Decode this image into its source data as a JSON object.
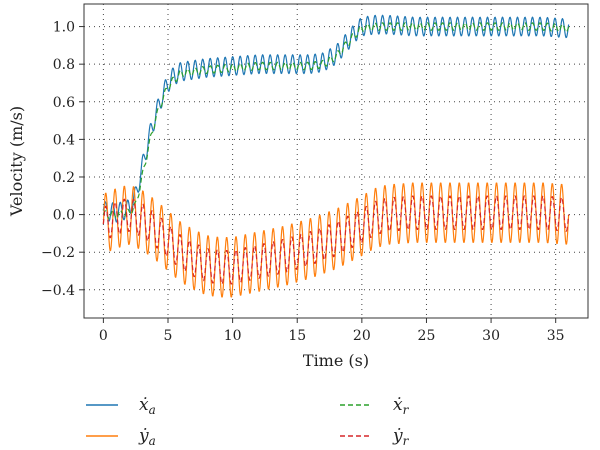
{
  "chart_data": {
    "type": "line",
    "title": "",
    "xlabel": "Time (s)",
    "ylabel": "Velocity (m/s)",
    "xlim": [
      -1.5,
      37.5
    ],
    "ylim": [
      -0.55,
      1.12
    ],
    "xticks": [
      0,
      5,
      10,
      15,
      20,
      25,
      30,
      35
    ],
    "yticks": [
      -0.4,
      -0.2,
      0.0,
      0.2,
      0.4,
      0.6,
      0.8,
      1.0
    ],
    "xtick_labels": [
      "0",
      "5",
      "10",
      "15",
      "20",
      "25",
      "30",
      "35"
    ],
    "ytick_labels": [
      "−0.4",
      "−0.2",
      "0.0",
      "0.2",
      "0.4",
      "0.6",
      "0.8",
      "1.0"
    ],
    "grid": "dotted",
    "legend_placement": "bottom",
    "series": [
      {
        "name": "ẋ_a",
        "symbol": "ẋ",
        "sub": "a",
        "color": "#1f77b4",
        "style": "solid",
        "x": [
          0,
          1,
          2,
          2.5,
          3,
          3.5,
          4,
          4.5,
          5,
          5.5,
          6,
          7,
          8,
          10,
          12,
          14,
          16,
          17,
          18,
          19,
          19.5,
          20,
          21,
          22,
          24,
          26,
          28,
          30,
          32,
          34,
          36
        ],
        "y": [
          0.02,
          0.01,
          0.03,
          0.1,
          0.25,
          0.4,
          0.52,
          0.62,
          0.7,
          0.74,
          0.76,
          0.77,
          0.78,
          0.79,
          0.8,
          0.8,
          0.8,
          0.81,
          0.85,
          0.93,
          0.97,
          1.0,
          1.01,
          1.01,
          1.0,
          1.0,
          1.0,
          1.0,
          1.0,
          1.0,
          0.99
        ],
        "oscillation": {
          "amplitude": 0.05,
          "period_s": 0.58
        }
      },
      {
        "name": "ẏ_a",
        "symbol": "ẏ",
        "sub": "a",
        "color": "#ff7f0e",
        "style": "solid",
        "x": [
          0,
          1,
          2,
          3,
          4,
          5,
          6,
          7,
          8,
          9,
          10,
          12,
          14,
          16,
          18,
          20,
          21,
          22,
          24,
          26,
          28,
          30,
          32,
          34,
          36
        ],
        "y": [
          -0.05,
          -0.02,
          0.0,
          -0.03,
          -0.08,
          -0.14,
          -0.2,
          -0.24,
          -0.27,
          -0.28,
          -0.28,
          -0.25,
          -0.22,
          -0.18,
          -0.13,
          -0.06,
          -0.02,
          0.0,
          0.01,
          0.01,
          0.01,
          0.01,
          0.01,
          0.01,
          0.0
        ],
        "oscillation": {
          "amplitude": 0.16,
          "period_s": 0.72
        }
      },
      {
        "name": "ẋ_r",
        "symbol": "ẋ",
        "sub": "r",
        "color": "#2ca02c",
        "style": "dashed",
        "x": [
          0,
          1,
          2,
          2.5,
          3,
          3.5,
          4,
          4.5,
          5,
          5.5,
          6,
          7,
          8,
          10,
          12,
          14,
          16,
          17,
          18,
          19,
          19.5,
          20,
          21,
          22,
          24,
          26,
          28,
          30,
          32,
          34,
          36
        ],
        "y": [
          0.0,
          0.0,
          0.01,
          0.05,
          0.2,
          0.36,
          0.5,
          0.6,
          0.68,
          0.72,
          0.75,
          0.76,
          0.77,
          0.78,
          0.79,
          0.79,
          0.79,
          0.8,
          0.84,
          0.92,
          0.96,
          0.99,
          1.0,
          1.0,
          1.0,
          1.0,
          1.0,
          1.0,
          1.0,
          1.0,
          0.99
        ],
        "oscillation": {
          "amplitude": 0.02,
          "period_s": 0.58
        }
      },
      {
        "name": "ẏ_r",
        "symbol": "ẏ",
        "sub": "r",
        "color": "#d62728",
        "style": "dashed",
        "x": [
          0,
          1,
          2,
          3,
          4,
          5,
          6,
          7,
          8,
          9,
          10,
          12,
          14,
          16,
          18,
          20,
          21,
          22,
          24,
          26,
          28,
          30,
          32,
          34,
          36
        ],
        "y": [
          -0.05,
          -0.02,
          0.0,
          -0.03,
          -0.08,
          -0.14,
          -0.2,
          -0.24,
          -0.27,
          -0.28,
          -0.28,
          -0.25,
          -0.22,
          -0.18,
          -0.13,
          -0.06,
          -0.02,
          0.0,
          0.01,
          0.01,
          0.01,
          0.01,
          0.01,
          0.01,
          0.0
        ],
        "oscillation": {
          "amplitude": 0.09,
          "period_s": 0.72
        }
      }
    ]
  }
}
